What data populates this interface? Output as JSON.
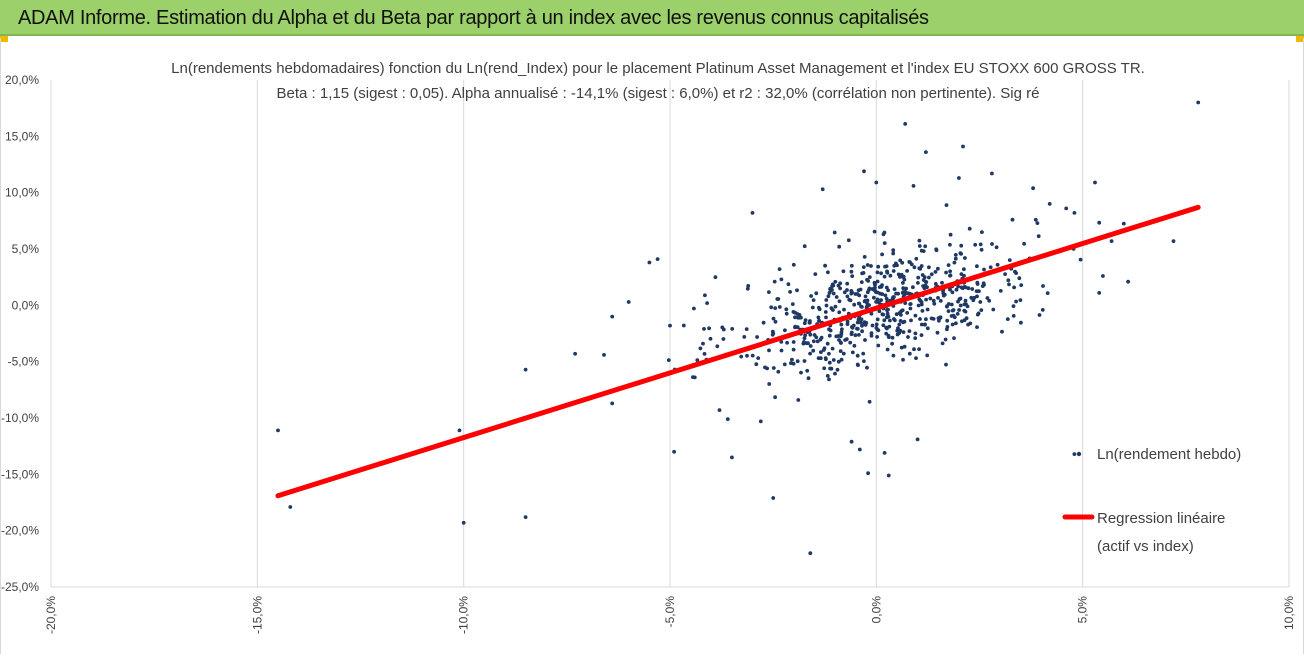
{
  "header": {
    "title": "ADAM Informe. Estimation du Alpha et du Beta par rapport à un index avec les revenus connus capitalisés"
  },
  "colors": {
    "header_bg": "#9bd06a",
    "corner_accent": "#f2b800",
    "points": "#1f3864",
    "regression": "#ff0000",
    "grid": "#d9d9d9"
  },
  "chart_data": {
    "type": "scatter",
    "title": "Ln(rendements hebdomadaires) fonction du Ln(rend_Index) pour le placement Platinum Asset Management et l'index EU STOXX 600 GROSS TR.",
    "subtitle": "Beta : 1,15 (sigest : 0,05). Alpha annualisé : -14,1% (sigest : 6,0%) et r2 : 32,0% (corrélation non pertinente). Sig ré",
    "xlim": [
      -20,
      10
    ],
    "ylim": [
      -25,
      20
    ],
    "x_ticks": [
      "-20,0%",
      "-15,0%",
      "-10,0%",
      "-5,0%",
      "0,0%",
      "5,0%",
      "10,0%"
    ],
    "y_ticks": [
      "20,0%",
      "15,0%",
      "10,0%",
      "5,0%",
      "0,0%",
      "-5,0%",
      "-10,0%",
      "-15,0%",
      "-20,0%",
      "-25,0%"
    ],
    "x_grid": true,
    "y_grid": false,
    "legend_position": "right",
    "series": [
      {
        "name": "Ln(rendement hebdo)",
        "kind": "points",
        "points": [
          [
            -14.5,
            -11.1
          ],
          [
            -14.2,
            -17.9
          ],
          [
            -10.1,
            -11.1
          ],
          [
            -10.0,
            -19.3
          ],
          [
            -8.5,
            -5.7
          ],
          [
            -8.5,
            -18.8
          ],
          [
            -7.5,
            -8.8
          ],
          [
            -7.3,
            -4.3
          ],
          [
            -6.6,
            -4.4
          ],
          [
            -6.5,
            -7.7
          ],
          [
            -6.4,
            -8.7
          ],
          [
            -6.4,
            -1.0
          ],
          [
            -6.0,
            0.3
          ],
          [
            -5.5,
            3.8
          ],
          [
            -5.3,
            4.1
          ],
          [
            -5.0,
            -1.8
          ],
          [
            -4.9,
            -13.0
          ],
          [
            -4.4,
            -6.4
          ],
          [
            -4.2,
            -3.4
          ],
          [
            -4.1,
            0.2
          ],
          [
            -3.9,
            2.5
          ],
          [
            -3.8,
            -9.3
          ],
          [
            -3.6,
            -10.1
          ],
          [
            -3.5,
            -13.5
          ],
          [
            -3.2,
            -2.8
          ],
          [
            -3.0,
            8.2
          ],
          [
            -2.8,
            -10.3
          ],
          [
            -2.6,
            -4.0
          ],
          [
            -2.5,
            -17.1
          ],
          [
            -2.3,
            2.3
          ],
          [
            -2.0,
            3.6
          ],
          [
            -1.6,
            -22.0
          ],
          [
            -1.3,
            10.3
          ],
          [
            -0.9,
            5.2
          ],
          [
            -0.6,
            -12.1
          ],
          [
            -0.4,
            -12.8
          ],
          [
            -0.3,
            11.9
          ],
          [
            -0.2,
            -14.9
          ],
          [
            0.0,
            10.9
          ],
          [
            0.2,
            -13.1
          ],
          [
            0.3,
            -15.1
          ],
          [
            0.7,
            16.1
          ],
          [
            0.9,
            10.6
          ],
          [
            1.0,
            -11.9
          ],
          [
            1.2,
            13.6
          ],
          [
            1.7,
            8.9
          ],
          [
            2.0,
            11.3
          ],
          [
            2.1,
            14.1
          ],
          [
            2.8,
            11.7
          ],
          [
            3.3,
            7.6
          ],
          [
            3.8,
            10.4
          ],
          [
            4.2,
            9.0
          ],
          [
            4.6,
            8.6
          ],
          [
            4.8,
            8.2
          ],
          [
            5.3,
            10.9
          ],
          [
            5.4,
            1.1
          ],
          [
            5.7,
            5.7
          ],
          [
            6.1,
            2.1
          ],
          [
            7.2,
            5.7
          ],
          [
            7.8,
            18.0
          ],
          [
            4.8,
            -13.2
          ]
        ],
        "cluster": {
          "count": 640,
          "x_mean": 0.2,
          "x_sd": 1.8,
          "y_mean": 0.0,
          "y_sd": 3.0,
          "correlation": 0.55,
          "seed": 20240611
        }
      },
      {
        "name": "Regression linéaire (actif vs index)",
        "kind": "line",
        "x": [
          -14.5,
          7.8
        ],
        "y": [
          -16.9,
          8.7
        ]
      }
    ],
    "legend": [
      "Ln(rendement hebdo)",
      "Regression linéaire",
      "(actif vs index)"
    ]
  }
}
